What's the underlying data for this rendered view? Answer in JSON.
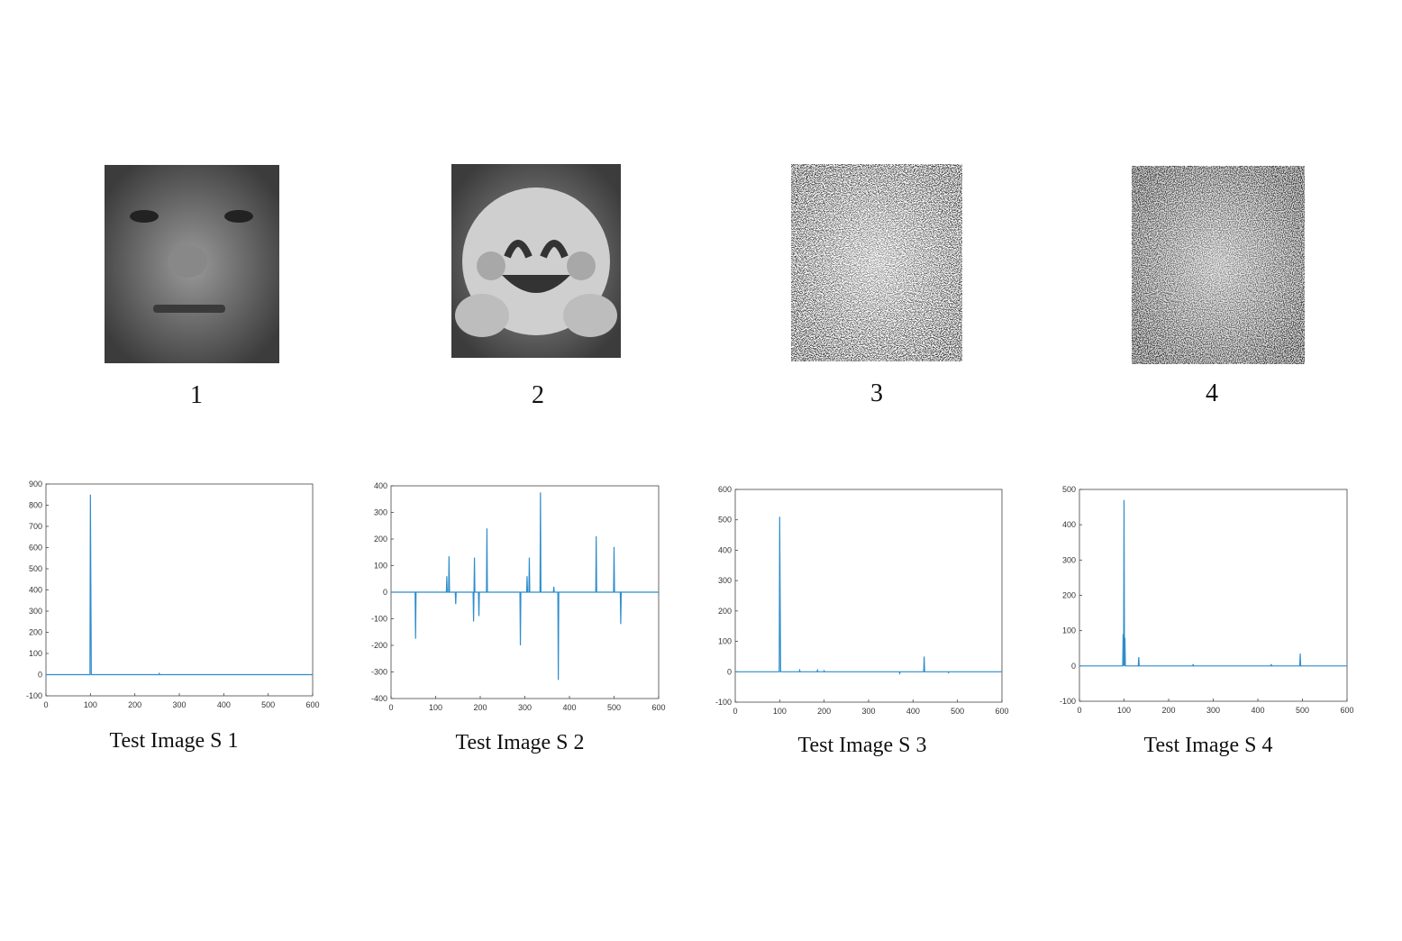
{
  "panels": [
    {
      "label": "1"
    },
    {
      "label": "2"
    },
    {
      "label": "3"
    },
    {
      "label": "4"
    }
  ],
  "chart_data": [
    {
      "type": "line",
      "title": "Test Image S 1",
      "color": "#2f8ccb",
      "x": [
        0,
        99,
        100,
        102,
        254,
        255,
        256,
        600
      ],
      "values": [
        0,
        0,
        850,
        0,
        0,
        5,
        0,
        0
      ],
      "xlim": [
        0,
        600
      ],
      "xticks": [
        0,
        100,
        200,
        300,
        400,
        500,
        600
      ],
      "ylim": [
        -100,
        900
      ],
      "yticks": [
        -100,
        0,
        100,
        200,
        300,
        400,
        500,
        600,
        700,
        800,
        900
      ]
    },
    {
      "type": "line",
      "title": "Test Image S 2",
      "color": "#2f8ccb",
      "x": [
        0,
        54,
        55,
        56,
        124,
        125,
        126,
        129,
        130,
        131,
        144,
        145,
        146,
        184,
        185,
        186,
        187,
        188,
        196,
        197,
        198,
        214,
        215,
        216,
        289,
        290,
        291,
        304,
        305,
        306,
        309,
        310,
        311,
        334,
        335,
        336,
        364,
        365,
        366,
        374,
        375,
        376,
        459,
        460,
        461,
        499,
        500,
        501,
        514,
        515,
        516,
        600
      ],
      "values": [
        0,
        0,
        -175,
        0,
        0,
        60,
        0,
        0,
        135,
        0,
        0,
        -45,
        0,
        0,
        -110,
        0,
        130,
        0,
        0,
        -90,
        0,
        0,
        240,
        0,
        0,
        -200,
        0,
        0,
        60,
        0,
        0,
        130,
        0,
        0,
        375,
        0,
        0,
        20,
        0,
        0,
        -330,
        0,
        0,
        210,
        0,
        0,
        170,
        0,
        0,
        -120,
        0,
        0
      ],
      "xlim": [
        0,
        600
      ],
      "xticks": [
        0,
        100,
        200,
        300,
        400,
        500,
        600
      ],
      "ylim": [
        -400,
        400
      ],
      "yticks": [
        -400,
        -300,
        -200,
        -100,
        0,
        100,
        200,
        300,
        400
      ]
    },
    {
      "type": "line",
      "title": "Test Image S 3",
      "color": "#2f8ccb",
      "x": [
        0,
        99,
        100,
        102,
        144,
        145,
        146,
        184,
        185,
        186,
        199,
        200,
        201,
        369,
        370,
        371,
        424,
        425,
        426,
        479,
        480,
        481,
        600
      ],
      "values": [
        0,
        0,
        510,
        0,
        0,
        5,
        0,
        0,
        5,
        0,
        0,
        3,
        0,
        0,
        -5,
        0,
        0,
        50,
        0,
        0,
        -3,
        0,
        0
      ],
      "xlim": [
        0,
        600
      ],
      "xticks": [
        0,
        100,
        200,
        300,
        400,
        500,
        600
      ],
      "ylim": [
        -100,
        600
      ],
      "yticks": [
        -100,
        0,
        100,
        200,
        300,
        400,
        500,
        600
      ]
    },
    {
      "type": "line",
      "title": "Test Image S 4",
      "color": "#2f8ccb",
      "x": [
        0,
        97,
        98,
        99,
        100,
        101,
        102,
        103,
        132,
        133,
        134,
        254,
        255,
        256,
        429,
        430,
        431,
        494,
        495,
        496,
        600
      ],
      "values": [
        0,
        0,
        90,
        0,
        470,
        0,
        80,
        0,
        0,
        25,
        0,
        0,
        5,
        0,
        0,
        5,
        0,
        0,
        35,
        0,
        0
      ],
      "xlim": [
        0,
        600
      ],
      "xticks": [
        0,
        100,
        200,
        300,
        400,
        500,
        600
      ],
      "ylim": [
        -100,
        500
      ],
      "yticks": [
        -100,
        0,
        100,
        200,
        300,
        400,
        500
      ]
    }
  ]
}
